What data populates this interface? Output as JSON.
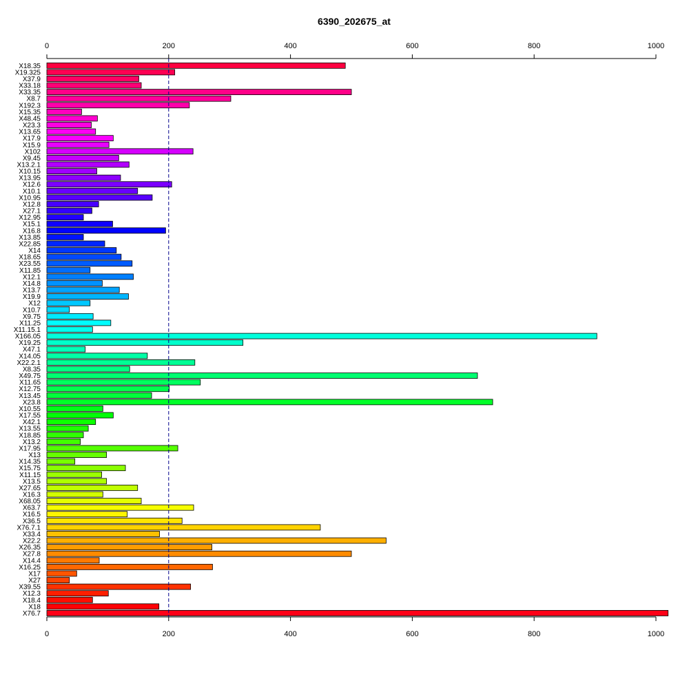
{
  "chart_data": {
    "type": "bar",
    "orientation": "horizontal",
    "title": "6390_202675_at",
    "xlabel": "",
    "ylabel": "",
    "xlim": [
      0,
      1020
    ],
    "x_ticks": [
      0,
      200,
      400,
      600,
      800,
      1000
    ],
    "axes": [
      "top",
      "bottom"
    ],
    "reference_line": {
      "value": 200,
      "style": "dashed",
      "color": "#00008B"
    },
    "bar_colors": "rainbow (red → magenta → blue → cyan → green → yellow → orange → red)",
    "categories": [
      "X18.35",
      "X19.325",
      "X37.9",
      "X33.18",
      "X33.35",
      "X8.7",
      "X192.3",
      "X15.35",
      "X48.45",
      "X23.3",
      "X13.65",
      "X17.9",
      "X15.9",
      "X102",
      "X9.45",
      "X13.2.1",
      "X10.15",
      "X13.95",
      "X12.6",
      "X10.1",
      "X10.95",
      "X12.8",
      "X27.1",
      "X12.95",
      "X15.1",
      "X16.8",
      "X13.85",
      "X22.85",
      "X14",
      "X18.65",
      "X23.55",
      "X11.85",
      "X12.1",
      "X14.8",
      "X13.7",
      "X19.9",
      "X12",
      "X10.7",
      "X9.75",
      "X11.25",
      "X11.15.1",
      "X166.05",
      "X19.25",
      "X47.1",
      "X14.05",
      "X22.2.1",
      "X8.35",
      "X49.75",
      "X11.65",
      "X12.75",
      "X13.45",
      "X23.8",
      "X10.55",
      "X17.55",
      "X42.1",
      "X13.55",
      "X18.85",
      "X13.2",
      "X17.95",
      "X13",
      "X14.35",
      "X15.75",
      "X11.15",
      "X13.5",
      "X27.65",
      "X16.3",
      "X68.05",
      "X63.7",
      "X16.5",
      "X36.5",
      "X76.7.1",
      "X33.4",
      "X22.2",
      "X26.35",
      "X27.8",
      "X14.4",
      "X16.25",
      "X17",
      "X27",
      "X39.55",
      "X12.3",
      "X18.4",
      "X18",
      "X76.7"
    ],
    "values": [
      490,
      210,
      151,
      155,
      500,
      302,
      234,
      57,
      83,
      73,
      80,
      109,
      102,
      240,
      118,
      135,
      82,
      121,
      205,
      149,
      173,
      85,
      74,
      60,
      108,
      195,
      60,
      95,
      114,
      122,
      140,
      71,
      142,
      91,
      119,
      134,
      71,
      37,
      76,
      105,
      75,
      903,
      322,
      63,
      165,
      243,
      136,
      707,
      252,
      201,
      172,
      732,
      92,
      109,
      80,
      68,
      60,
      55,
      215,
      98,
      46,
      129,
      90,
      98,
      149,
      92,
      155,
      241,
      132,
      222,
      449,
      185,
      557,
      271,
      500,
      86,
      272,
      49,
      37,
      236,
      101,
      75,
      184,
      1020
    ]
  }
}
